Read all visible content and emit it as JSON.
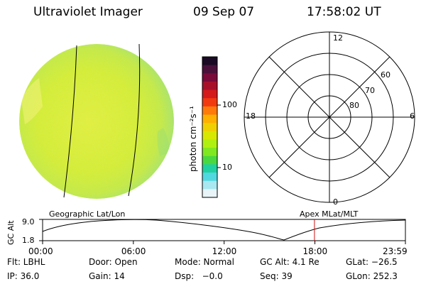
{
  "header": {
    "instrument": "Ultraviolet Imager",
    "date": "09 Sep 07",
    "time": "17:58:02 UT"
  },
  "colorbar": {
    "unit_label": "photon cm⁻²s⁻¹",
    "tick_labels": [
      "100",
      "10"
    ],
    "colors": [
      "#1a0a24",
      "#4a103a",
      "#7a0a3a",
      "#a8102a",
      "#d41a1a",
      "#f23a10",
      "#ff7a0a",
      "#ffb000",
      "#f0d000",
      "#d8e800",
      "#b0f010",
      "#80e820",
      "#4ad840",
      "#20d0a0",
      "#50d8e0",
      "#a8e8f0",
      "#e8f4f8"
    ]
  },
  "polar": {
    "mlt_labels": {
      "top": "12",
      "left": "18",
      "right": "6",
      "bottom": "0"
    },
    "lat_labels": [
      "60",
      "70",
      "80"
    ]
  },
  "timeline": {
    "ylabel": "GC Alt",
    "y_ticks": [
      "9.0",
      "1.8"
    ],
    "left_caption": "Geographic Lat/Lon",
    "right_caption": "Apex MLat/MLT",
    "x_ticks": [
      "00:00",
      "06:00",
      "12:00",
      "18:00",
      "23:59"
    ],
    "current_time_hours": 17.97
  },
  "info": {
    "filter": "Flt: LBHL",
    "door": "Door: Open",
    "mode": "Mode: Normal",
    "gc_alt": "GC Alt: 4.1 Re",
    "glat": "GLat: −26.5",
    "ip": "IP: 36.0",
    "gain": "Gain: 14",
    "dsp": "Dsp:   −0.0",
    "seq": "Seq: 39",
    "glon": "GLon: 252.3"
  }
}
